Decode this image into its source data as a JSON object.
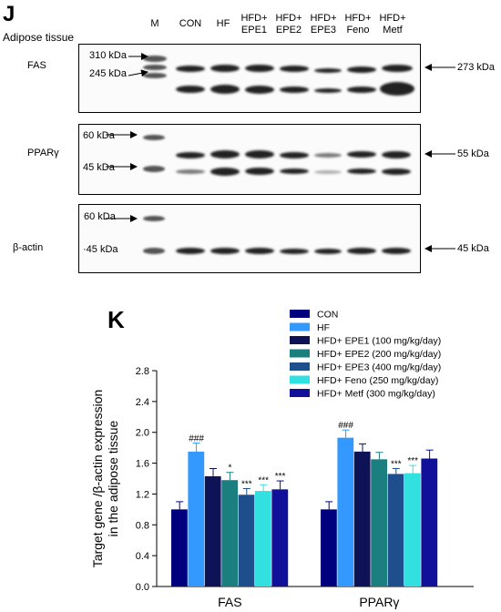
{
  "panel_j": {
    "letter": "J",
    "tissue": "Adipose tissue",
    "lanes": [
      {
        "l1": "M",
        "l2": ""
      },
      {
        "l1": "CON",
        "l2": ""
      },
      {
        "l1": "HF",
        "l2": ""
      },
      {
        "l1": "HFD+",
        "l2": "EPE1"
      },
      {
        "l1": "HFD+",
        "l2": "EPE2"
      },
      {
        "l1": "HFD+",
        "l2": "EPE3"
      },
      {
        "l1": "HFD+",
        "l2": "Feno"
      },
      {
        "l1": "HFD+",
        "l2": "Metf"
      }
    ],
    "blots": [
      {
        "protein": "FAS",
        "markers": [
          "310 kDa",
          "245 kDa"
        ],
        "size": "273 kDa"
      },
      {
        "protein": "PPARγ",
        "markers": [
          "60 kDa",
          "45 kDa"
        ],
        "size": "55 kDa"
      },
      {
        "protein": "β-actin",
        "markers": [
          "60 kDa",
          "·45 kDa"
        ],
        "size": "45 kDa"
      }
    ]
  },
  "panel_k": {
    "letter": "K"
  },
  "chart_data": {
    "type": "bar",
    "title": "",
    "xlabel": "",
    "ylabel": "Target gene /β-actin expression in the adipose tissue",
    "ylabel_lines": [
      "Target gene /β-actin expression",
      "in the adipose tissue"
    ],
    "categories": [
      "FAS",
      "PPARγ"
    ],
    "ylim": [
      0,
      2.8
    ],
    "yticks": [
      "0.0",
      "0.4",
      "0.8",
      "1.2",
      "1.6",
      "2.0",
      "2.4",
      "2.8"
    ],
    "grid": false,
    "legend_position": "top-right",
    "series": [
      {
        "name": "CON",
        "color": "#00007f",
        "values": [
          1.0,
          1.0
        ],
        "errors": [
          0.1,
          0.1
        ],
        "annotations": [
          "",
          ""
        ]
      },
      {
        "name": "HF",
        "color": "#3399ff",
        "values": [
          1.75,
          1.93
        ],
        "errors": [
          0.11,
          0.1
        ],
        "annotations": [
          "###",
          "###"
        ]
      },
      {
        "name": "HFD+ EPE1 (100 mg/kg/day)",
        "color": "#0d1356",
        "values": [
          1.43,
          1.75
        ],
        "errors": [
          0.1,
          0.1
        ],
        "annotations": [
          "",
          ""
        ]
      },
      {
        "name": "HFD+ EPE2 (200 mg/kg/day)",
        "color": "#1c7f7f",
        "values": [
          1.38,
          1.65
        ],
        "errors": [
          0.1,
          0.09
        ],
        "annotations": [
          "*",
          ""
        ]
      },
      {
        "name": "HFD+ EPE3 (400 mg/kg/day)",
        "color": "#1f4e8c",
        "values": [
          1.19,
          1.46
        ],
        "errors": [
          0.08,
          0.07
        ],
        "annotations": [
          "***",
          "***"
        ]
      },
      {
        "name": "HFD+ Feno (250 mg/kg/day)",
        "color": "#33e0e0",
        "values": [
          1.24,
          1.47
        ],
        "errors": [
          0.08,
          0.1
        ],
        "annotations": [
          "***",
          "***"
        ]
      },
      {
        "name": "HFD+ Metf (300 mg/kg/day)",
        "color": "#10109a",
        "values": [
          1.26,
          1.66
        ],
        "errors": [
          0.11,
          0.11
        ],
        "annotations": [
          "***",
          ""
        ]
      }
    ]
  }
}
